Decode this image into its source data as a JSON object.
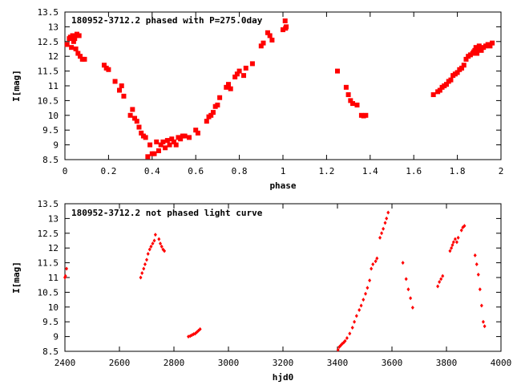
{
  "chart_data": [
    {
      "type": "scatter",
      "title": "180952-3712.2 phased with P=275.0day",
      "xlabel": "phase",
      "ylabel": "I[mag]",
      "xlim": [
        0,
        2
      ],
      "ylim": [
        13.5,
        8.5
      ],
      "y_inverted": true,
      "grid": false,
      "marker_color": "#ff0000",
      "x_ticks": [
        "0",
        "0.2",
        "0.4",
        "0.6",
        "0.8",
        "1",
        "1.2",
        "1.4",
        "1.6",
        "1.8",
        "2"
      ],
      "y_ticks": [
        "8.5",
        "9",
        "9.5",
        "10",
        "10.5",
        "11",
        "11.5",
        "12",
        "12.5",
        "13",
        "13.5"
      ],
      "series": [
        {
          "x": [
            0.01,
            0.02,
            0.025,
            0.03,
            0.035,
            0.04,
            0.045,
            0.05,
            0.055,
            0.06,
            0.065,
            0.07,
            0.08,
            0.09,
            0.18,
            0.19,
            0.2,
            0.23,
            0.25,
            0.26,
            0.27,
            0.3,
            0.31,
            0.32,
            0.33,
            0.34,
            0.35,
            0.36,
            0.37,
            0.38,
            0.39,
            0.4,
            0.41,
            0.42,
            0.43,
            0.44,
            0.45,
            0.46,
            0.47,
            0.48,
            0.49,
            0.5,
            0.51,
            0.52,
            0.53,
            0.54,
            0.55,
            0.57,
            0.6,
            0.61,
            0.65,
            0.66,
            0.67,
            0.68,
            0.69,
            0.7,
            0.71,
            0.74,
            0.75,
            0.76,
            0.78,
            0.79,
            0.8,
            0.82,
            0.83,
            0.86,
            0.9,
            0.91,
            0.93,
            0.94,
            0.95,
            1.0,
            1.01,
            1.012,
            1.015,
            1.25,
            1.29,
            1.3,
            1.31,
            1.32,
            1.34,
            1.36,
            1.37,
            1.38,
            1.69,
            1.71,
            1.72,
            1.73,
            1.74,
            1.75,
            1.76,
            1.77,
            1.78,
            1.79,
            1.8,
            1.81,
            1.82,
            1.83,
            1.84,
            1.85,
            1.86,
            1.87,
            1.875,
            1.88,
            1.885,
            1.89,
            1.895,
            1.9,
            1.91,
            1.92,
            1.93,
            1.94,
            1.95,
            1.96
          ],
          "y": [
            12.4,
            12.6,
            12.65,
            12.3,
            12.7,
            12.5,
            12.6,
            12.25,
            12.75,
            12.1,
            12.7,
            12.0,
            11.9,
            11.9,
            11.7,
            11.6,
            11.55,
            11.15,
            10.85,
            11.0,
            10.65,
            10.0,
            10.2,
            9.9,
            9.8,
            9.6,
            9.4,
            9.3,
            9.25,
            8.6,
            9.0,
            8.7,
            8.7,
            9.1,
            8.8,
            9.0,
            9.1,
            8.9,
            9.15,
            9.0,
            9.2,
            9.1,
            9.0,
            9.25,
            9.2,
            9.3,
            9.3,
            9.25,
            9.5,
            9.4,
            9.8,
            9.95,
            10.0,
            10.1,
            10.3,
            10.35,
            10.6,
            10.95,
            11.05,
            10.9,
            11.3,
            11.4,
            11.5,
            11.35,
            11.6,
            11.75,
            12.35,
            12.45,
            12.8,
            12.7,
            12.55,
            12.9,
            13.2,
            12.95,
            13.0,
            11.5,
            10.95,
            10.7,
            10.5,
            10.4,
            10.35,
            10.0,
            9.98,
            10.0,
            10.7,
            10.8,
            10.85,
            10.95,
            11.0,
            11.05,
            11.15,
            11.2,
            11.35,
            11.4,
            11.45,
            11.55,
            11.6,
            11.7,
            11.9,
            12.0,
            12.05,
            12.1,
            12.15,
            12.2,
            12.3,
            12.1,
            12.25,
            12.35,
            12.2,
            12.3,
            12.35,
            12.4,
            12.35,
            12.45
          ],
          "marker": "filled-square"
        }
      ]
    },
    {
      "type": "scatter",
      "title": "180952-3712.2 not phased light curve",
      "xlabel": "hjd0",
      "ylabel": "I[mag]",
      "xlim": [
        2400,
        4000
      ],
      "ylim": [
        13.5,
        8.5
      ],
      "y_inverted": true,
      "grid": false,
      "marker_color": "#ff0000",
      "x_ticks": [
        "2400",
        "2600",
        "2800",
        "3000",
        "3200",
        "3400",
        "3600",
        "3800",
        "4000"
      ],
      "y_ticks": [
        "8.5",
        "9",
        "9.5",
        "10",
        "10.5",
        "11",
        "11.5",
        "12",
        "12.5",
        "13",
        "13.5"
      ],
      "series": [
        {
          "x": [
            2400,
            2402,
            2406,
            2678,
            2683,
            2689,
            2694,
            2700,
            2705,
            2711,
            2716,
            2722,
            2728,
            2732,
            2745,
            2750,
            2755,
            2760,
            2765,
            2853,
            2860,
            2866,
            2872,
            2878,
            2884,
            2890,
            2896,
            3402,
            3407,
            3412,
            3417,
            3423,
            3428,
            3435,
            3445,
            3455,
            3462,
            3470,
            3480,
            3487,
            3495,
            3503,
            3510,
            3518,
            3524,
            3530,
            3540,
            3545,
            3556,
            3562,
            3568,
            3575,
            3580,
            3586,
            3640,
            3652,
            3660,
            3668,
            3676,
            3768,
            3774,
            3780,
            3786,
            3813,
            3818,
            3822,
            3826,
            3832,
            3838,
            3843,
            3855,
            3860,
            3866,
            3905,
            3911,
            3917,
            3923,
            3929,
            3935,
            3940
          ],
          "y": [
            11.0,
            11.05,
            11.3,
            11.0,
            11.15,
            11.3,
            11.45,
            11.6,
            11.8,
            11.95,
            12.05,
            12.15,
            12.25,
            12.45,
            12.3,
            12.15,
            12.05,
            11.95,
            11.9,
            9.0,
            9.02,
            9.05,
            9.08,
            9.1,
            9.15,
            9.2,
            9.25,
            8.55,
            8.65,
            8.7,
            8.75,
            8.8,
            8.85,
            8.95,
            9.1,
            9.3,
            9.5,
            9.7,
            9.9,
            10.05,
            10.25,
            10.45,
            10.65,
            10.9,
            11.3,
            11.45,
            11.55,
            11.65,
            12.35,
            12.5,
            12.65,
            12.85,
            13.0,
            13.2,
            11.5,
            10.95,
            10.6,
            10.3,
            9.98,
            10.7,
            10.85,
            10.95,
            11.05,
            11.9,
            12.0,
            12.1,
            12.2,
            12.3,
            12.2,
            12.35,
            12.6,
            12.7,
            12.75,
            11.75,
            11.45,
            11.1,
            10.6,
            10.05,
            9.5,
            9.35
          ],
          "marker": "small-diamond"
        }
      ]
    }
  ]
}
